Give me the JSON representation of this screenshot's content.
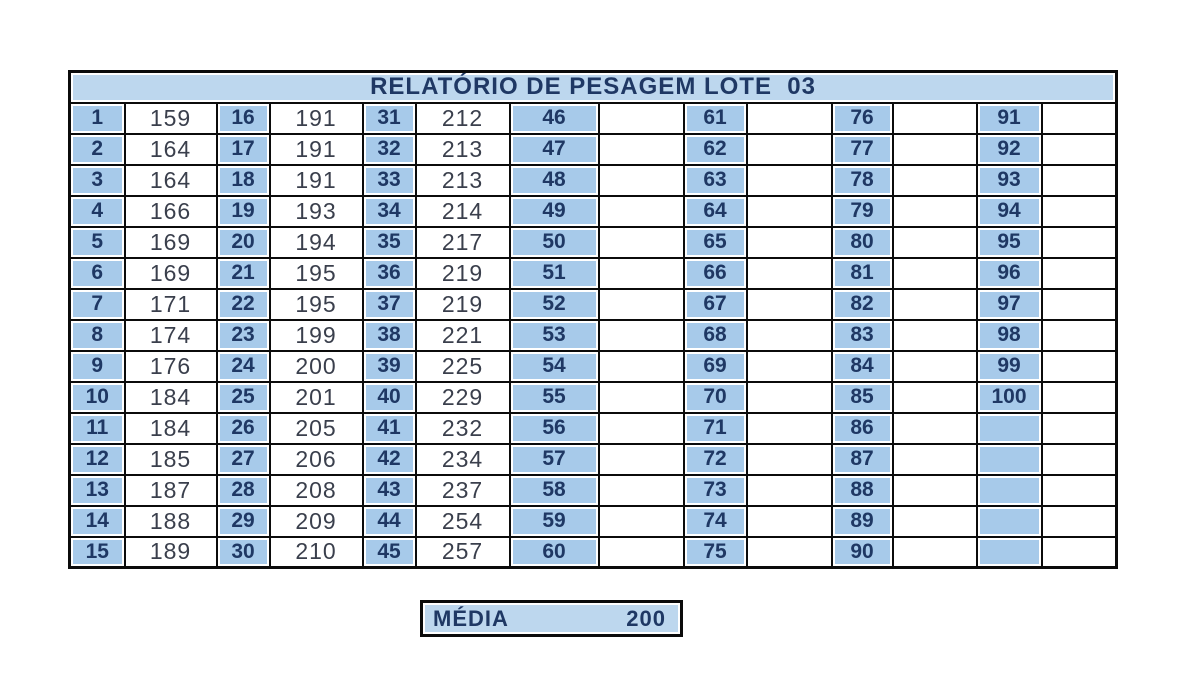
{
  "report": {
    "title": "RELATÓRIO DE PESAGEM LOTE  03",
    "media": {
      "label": "MÉDIA",
      "value": "200"
    }
  },
  "grid": {
    "columns": 7,
    "rows_per_column": 15,
    "max_index": 100,
    "weights": [
      159,
      164,
      164,
      166,
      169,
      169,
      171,
      174,
      176,
      184,
      184,
      185,
      187,
      188,
      189,
      191,
      191,
      191,
      193,
      194,
      195,
      195,
      199,
      200,
      201,
      205,
      206,
      208,
      209,
      210,
      212,
      213,
      213,
      214,
      217,
      219,
      219,
      221,
      225,
      229,
      232,
      234,
      237,
      254,
      257
    ]
  },
  "colors": {
    "header_fill": "#BDD7EE",
    "index_fill": "#A7CAEA",
    "title_text": "#1F3864",
    "index_text": "#1F3864",
    "value_text": "#3A3F4C",
    "border": "#0B0B0B",
    "background": "#FFFFFF"
  }
}
